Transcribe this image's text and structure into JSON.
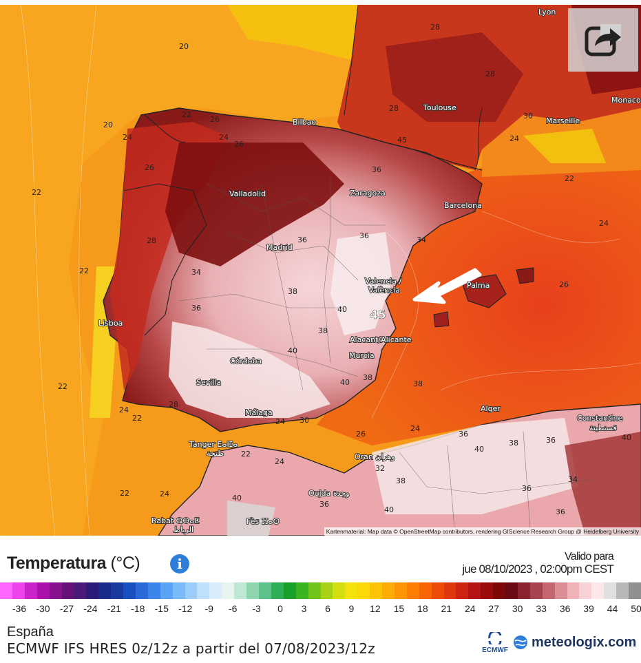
{
  "map": {
    "cities": [
      {
        "name": "Lyon"
      },
      {
        "name": "Bilbao"
      },
      {
        "name": "Toulouse"
      },
      {
        "name": "Marseille"
      },
      {
        "name": "Monaco"
      },
      {
        "name": "Valladolid"
      },
      {
        "name": "Zaragoza"
      },
      {
        "name": "Barcelona"
      },
      {
        "name": "Madrid"
      },
      {
        "name": "Valencia /"
      },
      {
        "name": "València"
      },
      {
        "name": "Palma"
      },
      {
        "name": "Lisboa"
      },
      {
        "name": "Alacant/Alicante"
      },
      {
        "name": "Murcia"
      },
      {
        "name": "Córdoba"
      },
      {
        "name": "Sevilla"
      },
      {
        "name": "Málaga"
      },
      {
        "name": "Tanger ⴹⴰⵏⵊⴰ"
      },
      {
        "name": "طنجة"
      },
      {
        "name": "Alger"
      },
      {
        "name": "Constantine"
      },
      {
        "name": "قسنطينة"
      },
      {
        "name": "Oran وهران"
      },
      {
        "name": "Oujda وجدة"
      },
      {
        "name": "Rabat ⵕⴱⴰⵟ"
      },
      {
        "name": "الرباط"
      },
      {
        "name": "Fès ⴼⴰⵙ"
      }
    ],
    "temperature_labels": [
      "20",
      "20",
      "22",
      "24",
      "26",
      "26",
      "28",
      "28",
      "28",
      "22",
      "24",
      "26",
      "22",
      "22",
      "24",
      "24",
      "26",
      "28",
      "30",
      "34",
      "36",
      "36",
      "36",
      "38",
      "38",
      "38",
      "40",
      "40",
      "40",
      "40",
      "22",
      "24",
      "22",
      "24",
      "28",
      "30",
      "22",
      "24",
      "26",
      "24",
      "22",
      "24",
      "36",
      "38",
      "40",
      "36",
      "36",
      "38",
      "34",
      "36",
      "32",
      "40",
      "36",
      "38",
      "34",
      "36",
      "40",
      "45"
    ],
    "marker_label": "45",
    "attribution": "Kartenmaterial: Map data © OpenStreetMap contributors, rendering GIScience Research Group @ Heidelberg University"
  },
  "share_button": {
    "icon": "share-icon"
  },
  "legend": {
    "title": "Temperatura",
    "unit": "(°C)",
    "info_icon": "i",
    "valid_label": "Valido para",
    "valid_date": "jue 08/10/2023 , 02:00pm CEST",
    "ticks": [
      "-36",
      "-30",
      "-27",
      "-24",
      "-21",
      "-18",
      "-15",
      "-12",
      "-9",
      "-6",
      "-3",
      "0",
      "3",
      "6",
      "9",
      "12",
      "15",
      "18",
      "21",
      "24",
      "27",
      "30",
      "33",
      "36",
      "39",
      "44",
      "50"
    ],
    "colors": [
      "#ff66ff",
      "#ee44ee",
      "#cc22cc",
      "#aa11aa",
      "#88118f",
      "#661178",
      "#4a1a7a",
      "#2a1a7a",
      "#1a2a8a",
      "#1a3aa0",
      "#1a4fc0",
      "#2a6ad8",
      "#3b86ea",
      "#5aa2f4",
      "#7bbaf8",
      "#9ccdfa",
      "#bfe0fc",
      "#d8ecfc",
      "#e8f4f0",
      "#bfe8d4",
      "#8fd6b0",
      "#5cc28a",
      "#2fae55",
      "#17a02a",
      "#3bb420",
      "#72c41a",
      "#a6d214",
      "#d4de10",
      "#f4e20c",
      "#fcd808",
      "#fcc404",
      "#fcac04",
      "#fc9404",
      "#fc7c04",
      "#f86404",
      "#ec4c08",
      "#e0380c",
      "#cc2410",
      "#b41414",
      "#9a0c0c",
      "#7e0808",
      "#6a0a14",
      "#8a2430",
      "#a84452",
      "#c46670",
      "#dc8e96",
      "#eeb2b8",
      "#f8d2d6",
      "#fce8ea",
      "#e0e0e0",
      "#b8b8b8",
      "#909090"
    ]
  },
  "footer": {
    "region": "España",
    "model": "ECMWF IFS HRES 0z/12z a partir del 07/08/2023/12z",
    "ecmwf_label": "ECMWF",
    "brand": "meteologix.com"
  }
}
